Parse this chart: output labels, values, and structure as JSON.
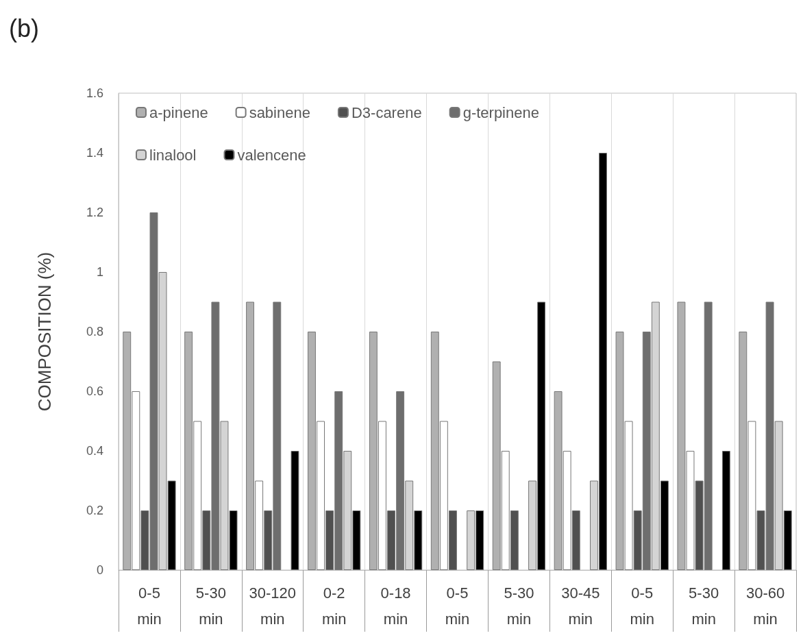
{
  "chart_data": {
    "type": "bar",
    "title": "(b)",
    "ylabel": "COMPOSITION (%)",
    "categories": [
      "0-5\nmin",
      "5-30\nmin",
      "30-120\nmin",
      "0-2\nmin",
      "0-18\nmin",
      "0-5\nmin",
      "5-30\nmin",
      "30-45\nmin",
      "0-5\nmin",
      "5-30\nmin",
      "30-60\nmin"
    ],
    "series": [
      {
        "name": "a-pinene",
        "color": "#b0b0b0",
        "values": [
          0.8,
          0.8,
          0.9,
          0.8,
          0.8,
          0.8,
          0.7,
          0.6,
          0.8,
          0.9,
          0.8
        ]
      },
      {
        "name": "sabinene",
        "color": "#ffffff",
        "values": [
          0.6,
          0.5,
          0.3,
          0.5,
          0.5,
          0.5,
          0.4,
          0.4,
          0.5,
          0.4,
          0.5
        ]
      },
      {
        "name": "D3-carene",
        "color": "#505050",
        "values": [
          0.2,
          0.2,
          0.2,
          0.2,
          0.2,
          0.2,
          0.2,
          0.2,
          0.2,
          0.3,
          0.2
        ]
      },
      {
        "name": "g-terpinene",
        "color": "#6e6e6e",
        "values": [
          1.2,
          0.9,
          0.9,
          0.6,
          0.6,
          null,
          null,
          null,
          0.8,
          0.9,
          0.9
        ]
      },
      {
        "name": "linalool",
        "color": "#d4d4d4",
        "values": [
          1.0,
          0.5,
          null,
          0.4,
          0.3,
          0.2,
          0.3,
          0.3,
          0.9,
          null,
          0.5
        ]
      },
      {
        "name": "valencene",
        "color": "#000000",
        "values": [
          0.3,
          0.2,
          0.4,
          0.2,
          0.2,
          0.2,
          0.9,
          1.4,
          0.3,
          0.4,
          0.2
        ]
      }
    ],
    "ylim": [
      0,
      1.6
    ],
    "yticks": [
      0,
      0.2,
      0.4,
      0.6,
      0.8,
      1,
      1.2,
      1.4,
      1.6
    ],
    "grid": "x",
    "legend": "top left"
  }
}
